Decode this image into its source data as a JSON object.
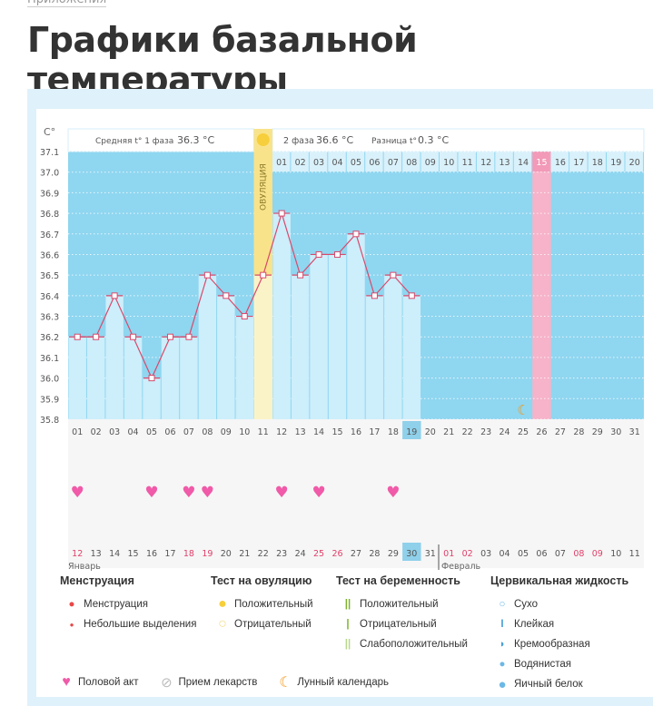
{
  "breadcrumb": "Приложения",
  "title": "Графики базальной температуры",
  "header": {
    "phase1_label": "Средняя t° 1 фаза",
    "phase1_value": "36.3 °C",
    "phase2_label": "2 фаза",
    "phase2_value": "36.6 °C",
    "diff_label": "Разница t°",
    "diff_value": "0.3 °C",
    "ovulation": "ОВУЛЯЦИЯ"
  },
  "chart_data": {
    "type": "bar",
    "ylabel": "C°",
    "ylim": [
      35.8,
      37.1
    ],
    "yticks": [
      "37.1",
      "37.0",
      "36.9",
      "36.8",
      "36.7",
      "36.6",
      "36.5",
      "36.4",
      "36.3",
      "36.2",
      "36.1",
      "36.0",
      "35.9",
      "35.8"
    ],
    "cycle_days": [
      "01",
      "02",
      "03",
      "04",
      "05",
      "06",
      "07",
      "08",
      "09",
      "10",
      "11",
      "12",
      "13",
      "14",
      "15",
      "16",
      "17",
      "18",
      "19",
      "20",
      "21",
      "22",
      "23",
      "24",
      "25",
      "26",
      "27",
      "28",
      "29",
      "30",
      "31"
    ],
    "temperatures": [
      36.2,
      36.2,
      36.4,
      36.2,
      36.0,
      36.2,
      36.2,
      36.5,
      36.4,
      36.3,
      36.5,
      36.8,
      36.5,
      36.6,
      36.6,
      36.7,
      36.4,
      36.5,
      36.4
    ],
    "phase2_days": [
      "01",
      "02",
      "03",
      "04",
      "05",
      "06",
      "07",
      "08",
      "09",
      "10",
      "11",
      "12",
      "13",
      "14",
      "15",
      "16",
      "17",
      "18",
      "19",
      "20"
    ],
    "ovulation_day": 11,
    "current_day": 19,
    "expected_period_phase2_day": 15,
    "moon_day": 25,
    "intercourse_days": [
      1,
      5,
      7,
      8,
      12,
      14,
      18
    ],
    "dates": [
      "12",
      "13",
      "14",
      "15",
      "16",
      "17",
      "18",
      "19",
      "20",
      "21",
      "22",
      "23",
      "24",
      "25",
      "26",
      "27",
      "28",
      "29",
      "30",
      "31",
      "01",
      "02",
      "03",
      "04",
      "05",
      "06",
      "07",
      "08",
      "09",
      "10",
      "11"
    ],
    "weekend_dates": [
      0,
      6,
      7,
      13,
      14,
      20,
      21,
      27,
      28
    ],
    "today_date_index": 18,
    "month1": "Январь",
    "month2": "Февраль",
    "colors": {
      "sky": "#8fd6f0",
      "bar": "#cdeefb",
      "line": "#d84a6c",
      "ovulation": "#f9e38a",
      "pink": "#f6b3c9",
      "highlight": "#8fd0ea"
    }
  },
  "legend": {
    "menstruation": {
      "title": "Менструация",
      "items": [
        "Менструация",
        "Небольшие выделения"
      ]
    },
    "ovulation_test": {
      "title": "Тест на овуляцию",
      "items": [
        "Положительный",
        "Отрицательный"
      ]
    },
    "pregnancy_test": {
      "title": "Тест на беременность",
      "items": [
        "Положительный",
        "Отрицательный",
        "Слабоположительный"
      ]
    },
    "cervical": {
      "title": "Цервикальная жидкость",
      "items": [
        "Сухо",
        "Клейкая",
        "Кремообразная",
        "Водянистая",
        "Яичный белок"
      ]
    },
    "other": [
      "Половой акт",
      "Прием лекарств",
      "Лунный календарь"
    ]
  }
}
